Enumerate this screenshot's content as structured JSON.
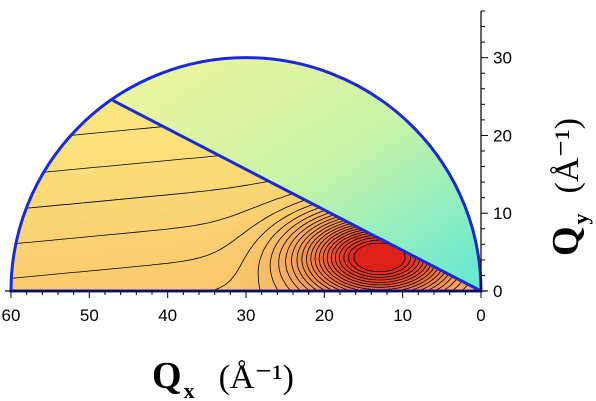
{
  "chart_data": {
    "type": "heatmap",
    "title": "",
    "xlabel": {
      "symbol": "Q",
      "subscript": "x",
      "unit": "(Å⁻¹)"
    },
    "ylabel": {
      "symbol": "Q",
      "subscript": "y",
      "unit": "(Å⁻¹)"
    },
    "xlim": [
      60,
      0
    ],
    "ylim": [
      0,
      36
    ],
    "x_axis_reversed": true,
    "x_ticks": [
      {
        "value": 60,
        "label": "60"
      },
      {
        "value": 50,
        "label": "50"
      },
      {
        "value": 40,
        "label": "40"
      },
      {
        "value": 30,
        "label": "30"
      },
      {
        "value": 20,
        "label": "20"
      },
      {
        "value": 10,
        "label": "10"
      },
      {
        "value": 0,
        "label": "0"
      }
    ],
    "y_ticks": [
      {
        "value": 0,
        "label": "0"
      },
      {
        "value": 10,
        "label": "10"
      },
      {
        "value": 20,
        "label": "20"
      },
      {
        "value": 30,
        "label": "30"
      }
    ],
    "region_boundary": {
      "shape": "semicircle",
      "center": [
        30,
        0
      ],
      "radius": 30,
      "color": "#1a2ad8"
    },
    "divider_line": {
      "from": [
        47,
        24.5
      ],
      "to": [
        0,
        0
      ],
      "color": "#1a2ad8"
    },
    "intensity_peak": [
      13,
      4.5
    ],
    "colormap": [
      "#f7f592",
      "#fbe17c",
      "#f9c56a",
      "#f5a35a",
      "#f07c45",
      "#e84a2c",
      "#dd2018"
    ],
    "contour_color": "#000000",
    "upper_region_line_color": "#3fe3cf",
    "grid": false,
    "legend": "none"
  }
}
